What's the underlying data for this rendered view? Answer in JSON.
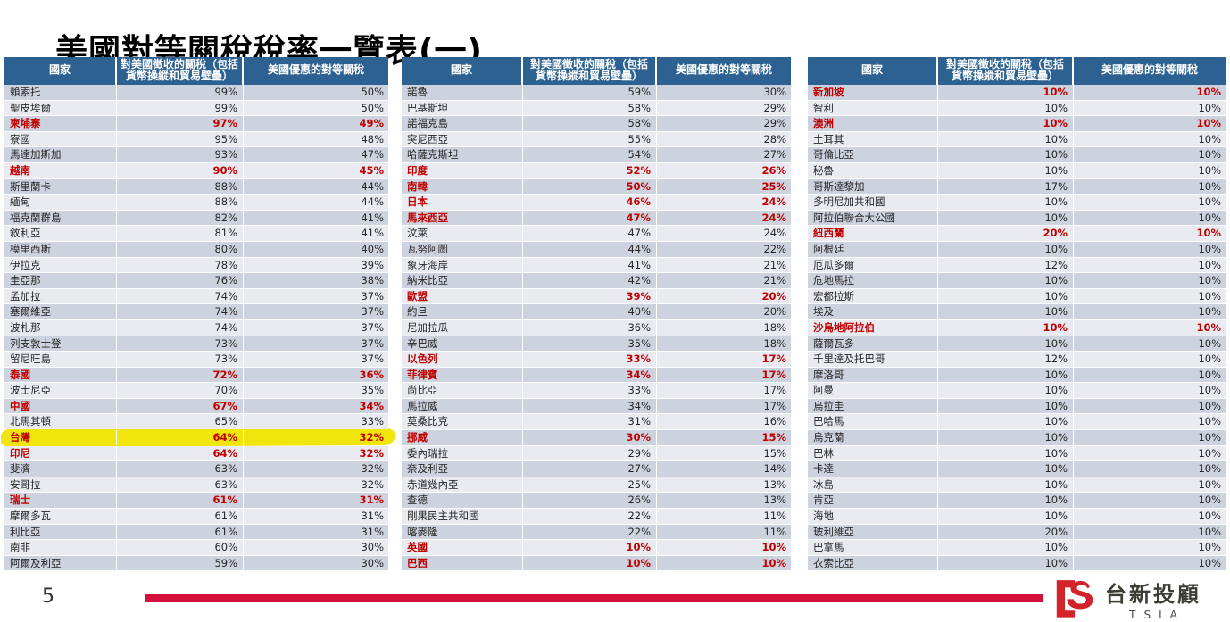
{
  "title": "美國對等關稅稅率一覽表(一)",
  "page_number": "5",
  "logo": {
    "brand_cn": "台新投顧",
    "brand_en": "TSIA"
  },
  "colors": {
    "header_blue": "#2D6191",
    "row_dark": "#CDD3DE",
    "row_light": "#E9EBF1",
    "red_text": "#C00000",
    "highlight_yellow": "#F0E60D",
    "footer_red": "#D40F3C",
    "logo_red": "#D2232A"
  },
  "table_headers": [
    "國家",
    "對美國徵收的關稅（包括貨幣操縱和貿易壁壘）",
    "美國優惠的對等關稅"
  ],
  "row_schema": "country | tariff_charged_to_usa | usa_discounted_reciprocal_tariff | style(0=normal,1=red,2=red+yellow-highlight)",
  "tables": [
    {
      "rows": [
        [
          "賴索托",
          "99%",
          "50%",
          0
        ],
        [
          "聖皮埃爾",
          "99%",
          "50%",
          0
        ],
        [
          "柬埔寨",
          "97%",
          "49%",
          1
        ],
        [
          "寮國",
          "95%",
          "48%",
          0
        ],
        [
          "馬達加斯加",
          "93%",
          "47%",
          0
        ],
        [
          "越南",
          "90%",
          "45%",
          1
        ],
        [
          "斯里蘭卡",
          "88%",
          "44%",
          0
        ],
        [
          "緬甸",
          "88%",
          "44%",
          0
        ],
        [
          "福克蘭群島",
          "82%",
          "41%",
          0
        ],
        [
          "敘利亞",
          "81%",
          "41%",
          0
        ],
        [
          "模里西斯",
          "80%",
          "40%",
          0
        ],
        [
          "伊拉克",
          "78%",
          "39%",
          0
        ],
        [
          "圭亞那",
          "76%",
          "38%",
          0
        ],
        [
          "孟加拉",
          "74%",
          "37%",
          0
        ],
        [
          "塞爾維亞",
          "74%",
          "37%",
          0
        ],
        [
          "波札那",
          "74%",
          "37%",
          0
        ],
        [
          "列支敦士登",
          "73%",
          "37%",
          0
        ],
        [
          "留尼旺島",
          "73%",
          "37%",
          0
        ],
        [
          "泰國",
          "72%",
          "36%",
          1
        ],
        [
          "波士尼亞",
          "70%",
          "35%",
          0
        ],
        [
          "中國",
          "67%",
          "34%",
          1
        ],
        [
          "北馬其頓",
          "65%",
          "33%",
          0
        ],
        [
          "台灣",
          "64%",
          "32%",
          2
        ],
        [
          "印尼",
          "64%",
          "32%",
          1
        ],
        [
          "斐濟",
          "63%",
          "32%",
          0
        ],
        [
          "安哥拉",
          "63%",
          "32%",
          0
        ],
        [
          "瑞士",
          "61%",
          "31%",
          1
        ],
        [
          "摩爾多瓦",
          "61%",
          "31%",
          0
        ],
        [
          "利比亞",
          "61%",
          "31%",
          0
        ],
        [
          "南非",
          "60%",
          "30%",
          0
        ],
        [
          "阿爾及利亞",
          "59%",
          "30%",
          0
        ]
      ]
    },
    {
      "rows": [
        [
          "諾魯",
          "59%",
          "30%",
          0
        ],
        [
          "巴基斯坦",
          "58%",
          "29%",
          0
        ],
        [
          "諾福克島",
          "58%",
          "29%",
          0
        ],
        [
          "突尼西亞",
          "55%",
          "28%",
          0
        ],
        [
          "哈薩克斯坦",
          "54%",
          "27%",
          0
        ],
        [
          "印度",
          "52%",
          "26%",
          1
        ],
        [
          "南韓",
          "50%",
          "25%",
          1
        ],
        [
          "日本",
          "46%",
          "24%",
          1
        ],
        [
          "馬來西亞",
          "47%",
          "24%",
          1
        ],
        [
          "汶萊",
          "47%",
          "24%",
          0
        ],
        [
          "瓦努阿圖",
          "44%",
          "22%",
          0
        ],
        [
          "象牙海岸",
          "41%",
          "21%",
          0
        ],
        [
          "納米比亞",
          "42%",
          "21%",
          0
        ],
        [
          "歐盟",
          "39%",
          "20%",
          1
        ],
        [
          "約旦",
          "40%",
          "20%",
          0
        ],
        [
          "尼加拉瓜",
          "36%",
          "18%",
          0
        ],
        [
          "辛巴威",
          "35%",
          "18%",
          0
        ],
        [
          "以色列",
          "33%",
          "17%",
          1
        ],
        [
          "菲律賓",
          "34%",
          "17%",
          1
        ],
        [
          "尚比亞",
          "33%",
          "17%",
          0
        ],
        [
          "馬拉威",
          "34%",
          "17%",
          0
        ],
        [
          "莫桑比克",
          "31%",
          "16%",
          0
        ],
        [
          "挪威",
          "30%",
          "15%",
          1
        ],
        [
          "委內瑞拉",
          "29%",
          "15%",
          0
        ],
        [
          "奈及利亞",
          "27%",
          "14%",
          0
        ],
        [
          "赤道幾內亞",
          "25%",
          "13%",
          0
        ],
        [
          "查德",
          "26%",
          "13%",
          0
        ],
        [
          "剛果民主共和國",
          "22%",
          "11%",
          0
        ],
        [
          "喀麥隆",
          "22%",
          "11%",
          0
        ],
        [
          "英國",
          "10%",
          "10%",
          1
        ],
        [
          "巴西",
          "10%",
          "10%",
          1
        ]
      ]
    },
    {
      "rows": [
        [
          "新加坡",
          "10%",
          "10%",
          1
        ],
        [
          "智利",
          "10%",
          "10%",
          0
        ],
        [
          "澳洲",
          "10%",
          "10%",
          1
        ],
        [
          "土耳其",
          "10%",
          "10%",
          0
        ],
        [
          "哥倫比亞",
          "10%",
          "10%",
          0
        ],
        [
          "秘魯",
          "10%",
          "10%",
          0
        ],
        [
          "哥斯達黎加",
          "17%",
          "10%",
          0
        ],
        [
          "多明尼加共和國",
          "10%",
          "10%",
          0
        ],
        [
          "阿拉伯聯合大公國",
          "10%",
          "10%",
          0
        ],
        [
          "紐西蘭",
          "20%",
          "10%",
          1
        ],
        [
          "阿根廷",
          "10%",
          "10%",
          0
        ],
        [
          "厄瓜多爾",
          "12%",
          "10%",
          0
        ],
        [
          "危地馬拉",
          "10%",
          "10%",
          0
        ],
        [
          "宏都拉斯",
          "10%",
          "10%",
          0
        ],
        [
          "埃及",
          "10%",
          "10%",
          0
        ],
        [
          "沙烏地阿拉伯",
          "10%",
          "10%",
          1
        ],
        [
          "薩爾瓦多",
          "10%",
          "10%",
          0
        ],
        [
          "千里達及托巴哥",
          "12%",
          "10%",
          0
        ],
        [
          "摩洛哥",
          "10%",
          "10%",
          0
        ],
        [
          "阿曼",
          "10%",
          "10%",
          0
        ],
        [
          "烏拉圭",
          "10%",
          "10%",
          0
        ],
        [
          "巴哈馬",
          "10%",
          "10%",
          0
        ],
        [
          "烏克蘭",
          "10%",
          "10%",
          0
        ],
        [
          "巴林",
          "10%",
          "10%",
          0
        ],
        [
          "卡達",
          "10%",
          "10%",
          0
        ],
        [
          "冰島",
          "10%",
          "10%",
          0
        ],
        [
          "肯亞",
          "10%",
          "10%",
          0
        ],
        [
          "海地",
          "10%",
          "10%",
          0
        ],
        [
          "玻利維亞",
          "20%",
          "10%",
          0
        ],
        [
          "巴拿馬",
          "10%",
          "10%",
          0
        ],
        [
          "衣索比亞",
          "10%",
          "10%",
          0
        ]
      ]
    }
  ]
}
